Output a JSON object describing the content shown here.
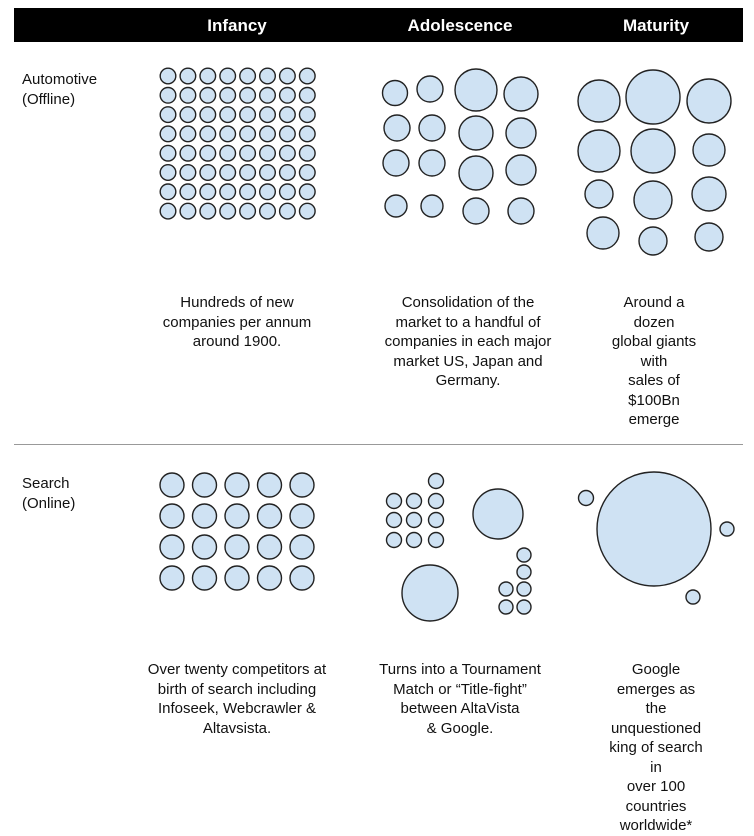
{
  "header": {
    "columns": [
      "Infancy",
      "Adolescence",
      "Maturity"
    ]
  },
  "colors": {
    "circle_fill": "#cfe2f3",
    "circle_stroke": "#222222",
    "header_bg": "#000000"
  },
  "rows": [
    {
      "label": "Automotive\n(Offline)",
      "descriptions": [
        "Hundreds of new\ncompanies per annum\naround 1900.",
        "Consolidation of the\nmarket to a handful of\ncompanies in each major\nmarket US, Japan and\nGermany.",
        "Around a dozen\nglobal giants with\nsales of $100Bn\nemerge"
      ]
    },
    {
      "label": "Search\n(Online)",
      "descriptions": [
        "Over twenty competitors at\nbirth of search including\nInfoseek, Webcrawler &\nAltavsista.",
        "Turns into a Tournament\nMatch or “Title-fight”\nbetween AltaVista\n& Google.",
        "Google emerges as\nthe unquestioned\nking of search in\nover 100 countries\nworldwide*"
      ]
    }
  ]
}
